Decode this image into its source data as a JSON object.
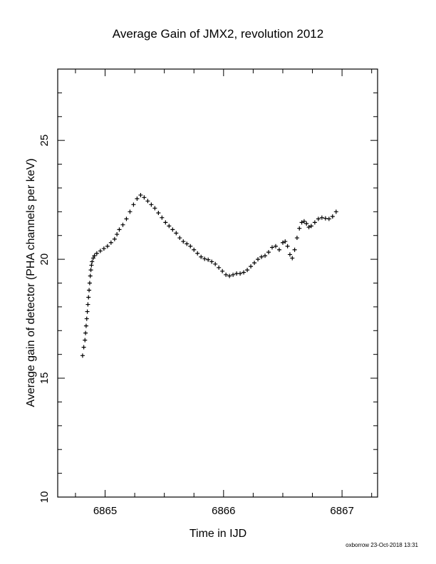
{
  "chart_data": {
    "type": "scatter",
    "title": "Average Gain of JMX2, revolution 2012",
    "xlabel": "Time in IJD",
    "ylabel": "Average gain of detector (PHA channels per keV)",
    "xlim": [
      6864.6,
      6867.3
    ],
    "ylim": [
      10,
      28
    ],
    "xticks": [
      6865,
      6866,
      6867
    ],
    "xtick_labels": [
      "6865",
      "6866",
      "6867"
    ],
    "xminor_step": 0.25,
    "yticks": [
      10,
      15,
      20,
      25
    ],
    "ytick_labels": [
      "10",
      "15",
      "20",
      "25"
    ],
    "yminor_step": 1,
    "grid": false,
    "legend": "none",
    "marker": "+",
    "color": "#000000",
    "series": [
      {
        "x": [
          6864.81,
          6864.82,
          6864.83,
          6864.835,
          6864.84,
          6864.845,
          6864.85,
          6864.855,
          6864.86,
          6864.865,
          6864.87,
          6864.875,
          6864.88,
          6864.885,
          6864.89,
          6864.9,
          6864.91,
          6864.93,
          6864.96,
          6864.99,
          6865.02,
          6865.05,
          6865.08,
          6865.1,
          6865.12,
          6865.15,
          6865.18,
          6865.21,
          6865.24,
          6865.27,
          6865.3,
          6865.33,
          6865.36,
          6865.39,
          6865.42,
          6865.45,
          6865.48,
          6865.51,
          6865.54,
          6865.57,
          6865.6,
          6865.63,
          6865.66,
          6865.69,
          6865.72,
          6865.75,
          6865.78,
          6865.81,
          6865.84,
          6865.87,
          6865.9,
          6865.93,
          6865.96,
          6865.99,
          6866.02,
          6866.05,
          6866.08,
          6866.11,
          6866.14,
          6866.17,
          6866.2,
          6866.23,
          6866.26,
          6866.29,
          6866.32,
          6866.35,
          6866.38,
          6866.41,
          6866.44,
          6866.47,
          6866.5,
          6866.52,
          6866.54,
          6866.56,
          6866.58,
          6866.6,
          6866.62,
          6866.64,
          6866.66,
          6866.68,
          6866.7,
          6866.72,
          6866.74,
          6866.77,
          6866.8,
          6866.83,
          6866.86,
          6866.89,
          6866.92,
          6866.95
        ],
        "y": [
          15.95,
          16.3,
          16.6,
          16.9,
          17.2,
          17.5,
          17.8,
          18.1,
          18.4,
          18.7,
          19.0,
          19.3,
          19.55,
          19.75,
          19.9,
          20.05,
          20.15,
          20.25,
          20.35,
          20.45,
          20.55,
          20.7,
          20.85,
          21.05,
          21.25,
          21.45,
          21.7,
          22.0,
          22.3,
          22.55,
          22.7,
          22.6,
          22.45,
          22.3,
          22.15,
          21.95,
          21.75,
          21.55,
          21.4,
          21.25,
          21.1,
          20.9,
          20.75,
          20.65,
          20.55,
          20.4,
          20.25,
          20.1,
          20.02,
          19.98,
          19.9,
          19.8,
          19.65,
          19.5,
          19.35,
          19.3,
          19.35,
          19.4,
          19.4,
          19.45,
          19.55,
          19.7,
          19.85,
          20.0,
          20.1,
          20.15,
          20.3,
          20.5,
          20.55,
          20.4,
          20.7,
          20.75,
          20.55,
          20.2,
          20.05,
          20.4,
          20.9,
          21.3,
          21.55,
          21.6,
          21.5,
          21.35,
          21.4,
          21.55,
          21.7,
          21.75,
          21.72,
          21.7,
          21.8,
          22.0
        ]
      }
    ]
  },
  "footer_text": "oxborrow 23-Oct-2018 13:31"
}
